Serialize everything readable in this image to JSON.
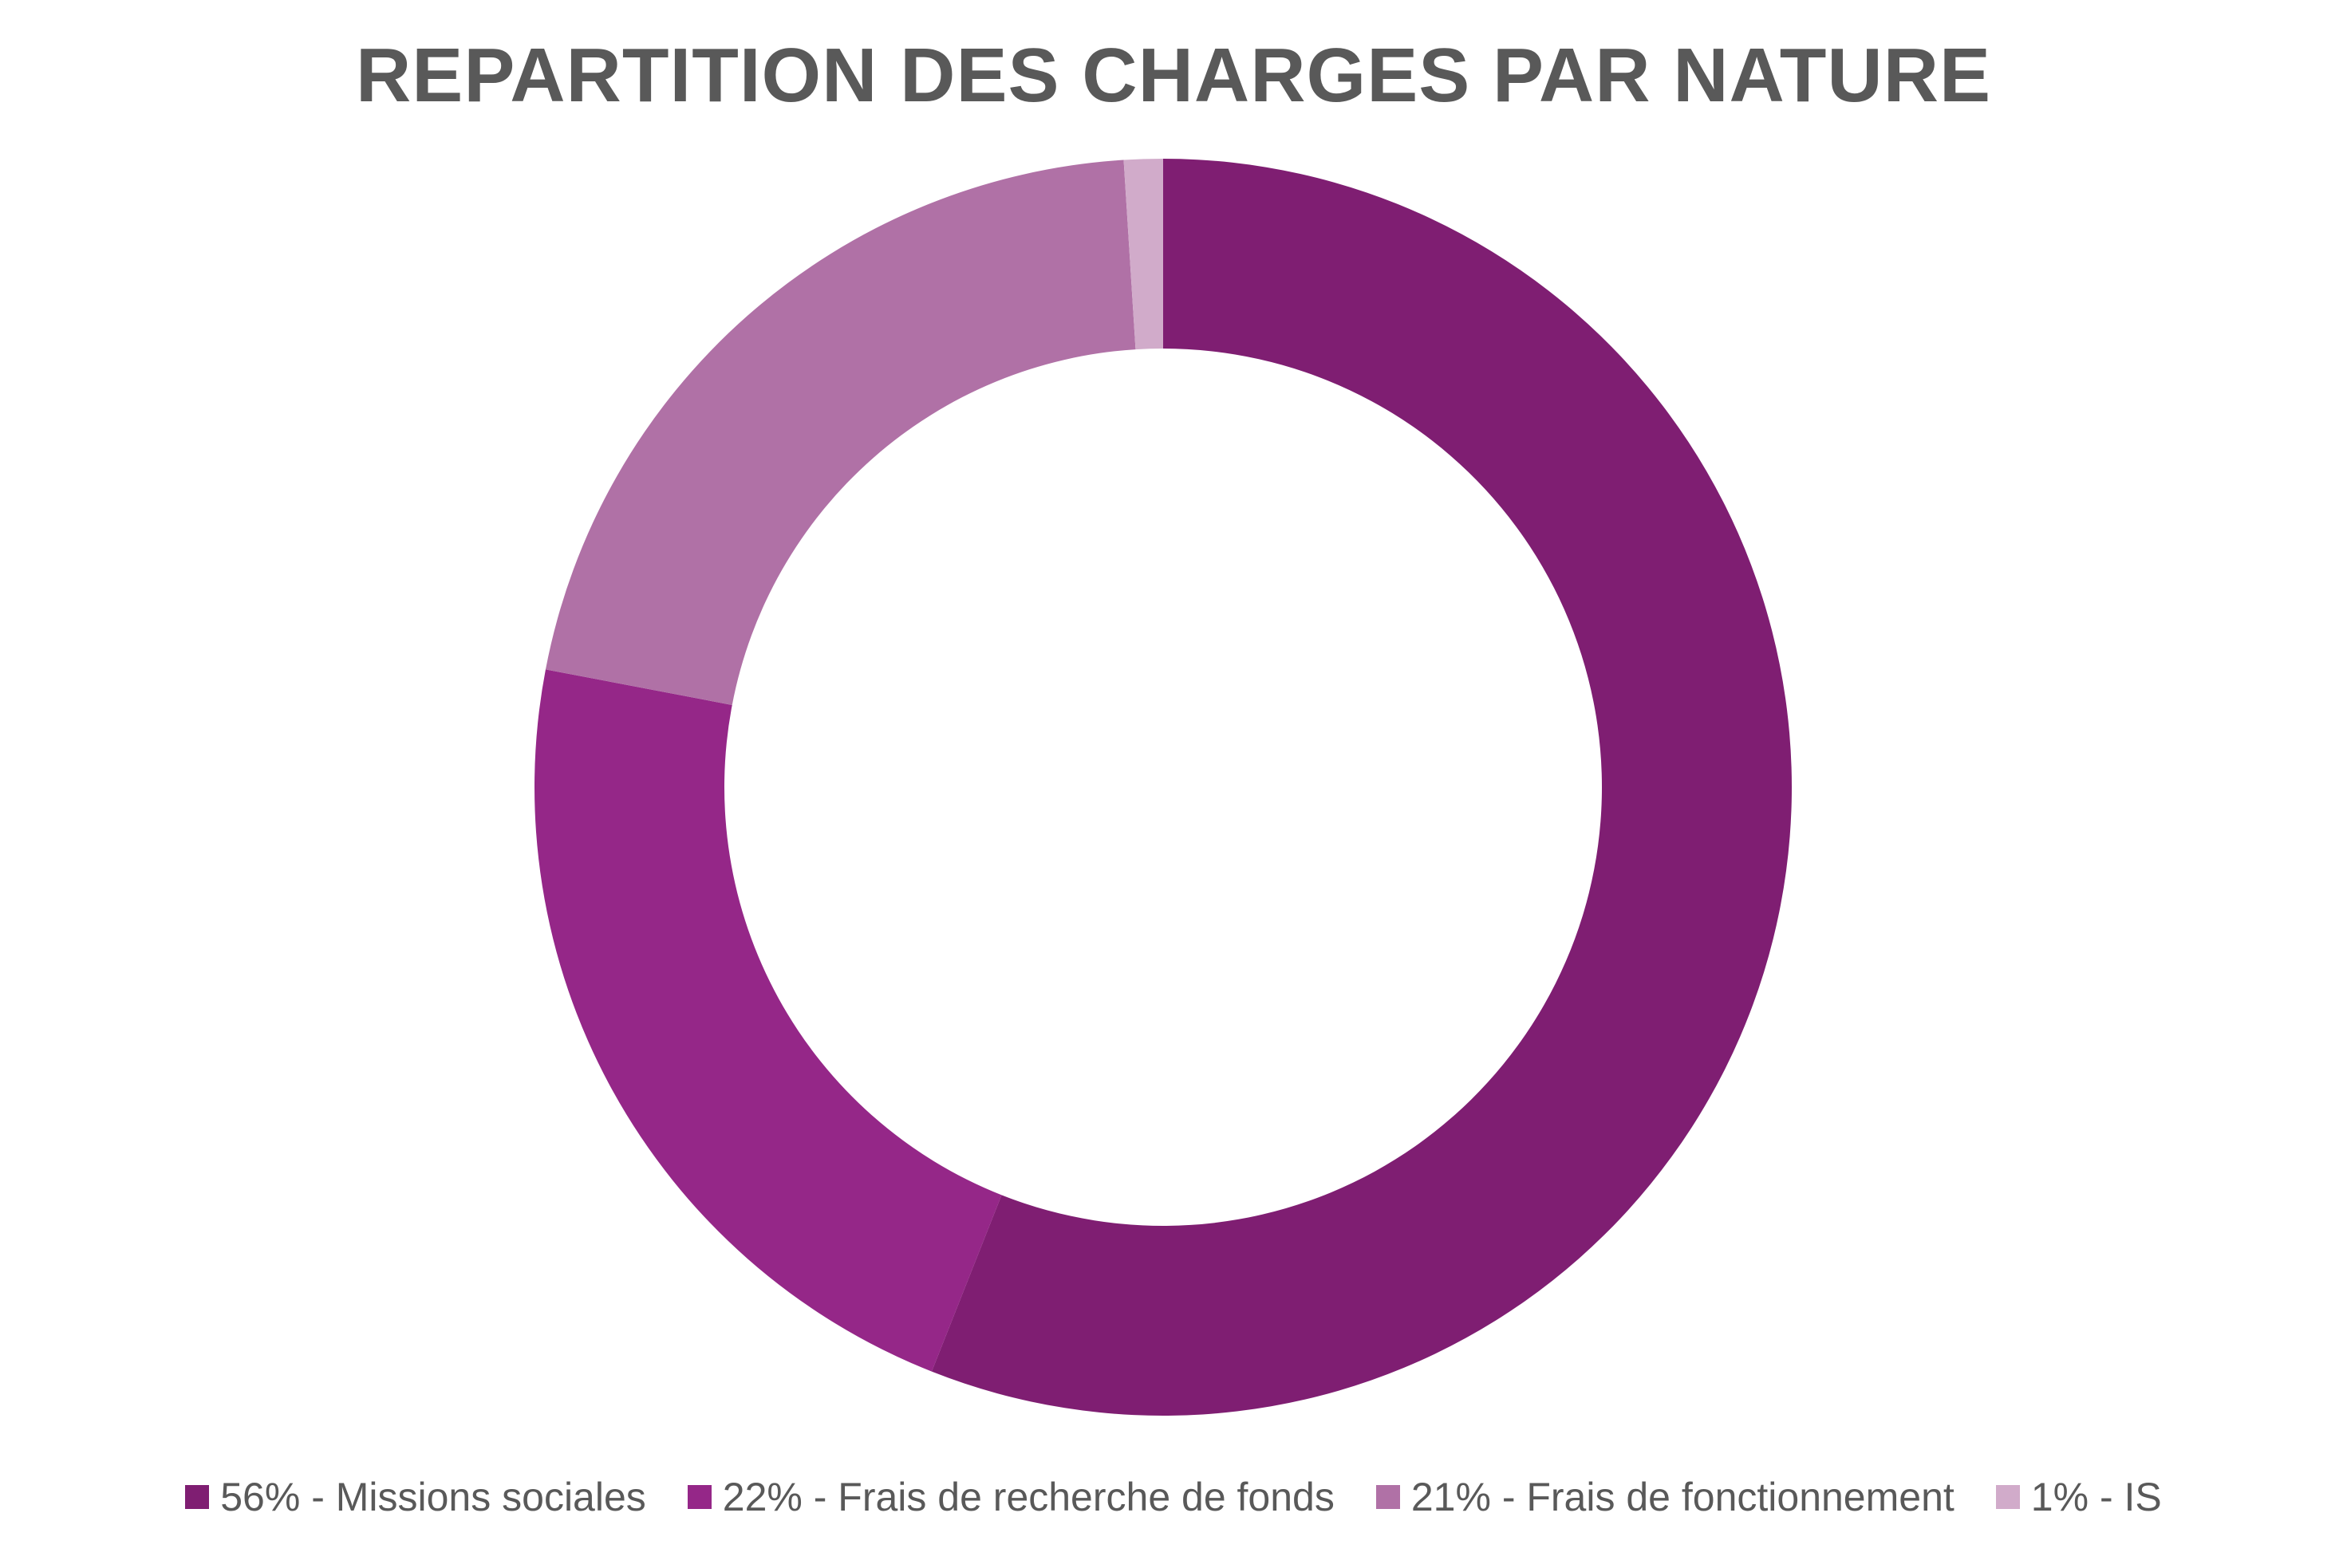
{
  "chart_data": {
    "type": "pie",
    "donut": true,
    "title": "REPARTITION DES CHARGES PAR NATURE",
    "categories": [
      "Missions sociales",
      "Frais de recherche de fonds",
      "Frais de fonctionnement",
      "IS"
    ],
    "values": [
      56,
      22,
      21,
      1
    ],
    "unit": "%",
    "colors": [
      "#7F1E72",
      "#952788",
      "#B071A6",
      "#D1ABCA"
    ],
    "legend": {
      "placement": "bottom",
      "entries": [
        "56% - Missions sociales",
        "22% - Frais de recherche de fonds",
        "21% - Frais de fonctionnement",
        "1% - IS"
      ]
    }
  }
}
